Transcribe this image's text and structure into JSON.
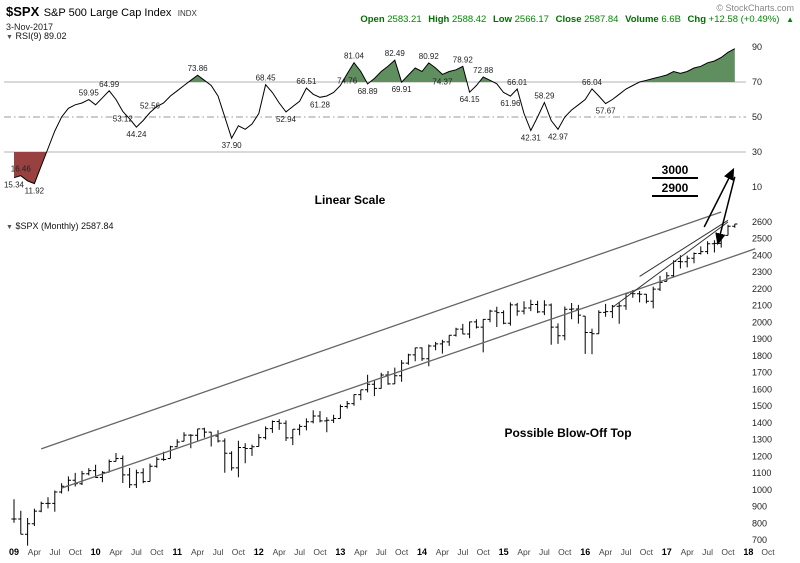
{
  "header": {
    "symbol": "$SPX",
    "name": "S&P 500 Large Cap Index",
    "exchange": "INDX",
    "date": "3-Nov-2017",
    "copyright": "© StockCharts.com",
    "quote": {
      "open_label": "Open",
      "open": "2583.21",
      "high_label": "High",
      "high": "2588.42",
      "low_label": "Low",
      "low": "2566.17",
      "close_label": "Close",
      "close": "2587.84",
      "volume_label": "Volume",
      "volume": "6.6B",
      "chg_label": "Chg",
      "chg": "+12.58 (+0.49%)"
    }
  },
  "icons": {
    "collapse": "▼",
    "up_arrow": "▲"
  },
  "rsi_panel": {
    "name": "RSI(9)",
    "value": "89.02",
    "axis": [
      90,
      70,
      50,
      30,
      10
    ]
  },
  "main_panel": {
    "name": "$SPX (Monthly)",
    "value": "2587.84",
    "axis": [
      2600,
      2500,
      2400,
      2300,
      2200,
      2100,
      2000,
      1900,
      1800,
      1700,
      1600,
      1500,
      1400,
      1300,
      1200,
      1100,
      1000,
      900,
      800,
      700
    ]
  },
  "annotations": {
    "linear_scale": "Linear Scale",
    "blow_off": "Possible Blow-Off Top",
    "target_upper": "3000",
    "target_lower": "2900"
  },
  "x_axis": {
    "years": [
      "09",
      "10",
      "11",
      "12",
      "13",
      "14",
      "15",
      "16",
      "17",
      "18"
    ],
    "quarter_months": [
      "Apr",
      "Jul",
      "Oct"
    ],
    "extra_month": "Oct"
  },
  "colors": {
    "quote_green": "#008000",
    "rsi_fill_up": "#5f8f5f",
    "rsi_fill_down": "#994040",
    "line": "#000000",
    "channel": "#666666",
    "guide": "#b3b3b3",
    "mid_guide": "#999999",
    "copyright_gray": "#888888"
  },
  "chart_data": {
    "type": "mixed",
    "panels": [
      {
        "type": "line",
        "name": "RSI(9)",
        "current": 89.02,
        "ylim": [
          0,
          100
        ],
        "overbought": 70,
        "oversold": 30,
        "midline": 50,
        "values": [
          15.34,
          16.46,
          13.5,
          11.92,
          22,
          32,
          42,
          50,
          55,
          57,
          58,
          59.95,
          57,
          61,
          64.99,
          60,
          53.12,
          49,
          44.24,
          48,
          52.56,
          56,
          58,
          62,
          65,
          68,
          71,
          73.86,
          71,
          68,
          62,
          50,
          37.9,
          45,
          43,
          46,
          52,
          68.45,
          64,
          58,
          52.94,
          56,
          59,
          66.51,
          63,
          61.28,
          62,
          64,
          68,
          74.76,
          81.04,
          76,
          68.89,
          72,
          76,
          79,
          82.49,
          69.91,
          74,
          78,
          76,
          80.92,
          78,
          74.37,
          76,
          77,
          78.92,
          64.15,
          68,
          72.88,
          71,
          69,
          64,
          61.96,
          66.01,
          52,
          42.31,
          50,
          58.29,
          48,
          42.97,
          50,
          54,
          57,
          60,
          66.04,
          62,
          57.67,
          60,
          63,
          66,
          68,
          70,
          71,
          72,
          73,
          74,
          76,
          75,
          76,
          78,
          79,
          81,
          82,
          84,
          87,
          89.02
        ],
        "callouts": [
          [
            0,
            15.34,
            "b"
          ],
          [
            1,
            16.46,
            "a"
          ],
          [
            3,
            11.92,
            "b"
          ],
          [
            11,
            59.95,
            "a"
          ],
          [
            14,
            64.99,
            "a"
          ],
          [
            16,
            53.12,
            "b"
          ],
          [
            18,
            44.24,
            "b"
          ],
          [
            20,
            52.56,
            "a"
          ],
          [
            27,
            73.86,
            "a"
          ],
          [
            32,
            37.9,
            "b"
          ],
          [
            37,
            68.45,
            "a"
          ],
          [
            40,
            52.94,
            "b"
          ],
          [
            43,
            66.51,
            "a"
          ],
          [
            45,
            61.28,
            "b"
          ],
          [
            49,
            74.76,
            "b"
          ],
          [
            50,
            81.04,
            "a"
          ],
          [
            52,
            68.89,
            "b"
          ],
          [
            56,
            82.49,
            "a"
          ],
          [
            57,
            69.91,
            "b"
          ],
          [
            61,
            80.92,
            "a"
          ],
          [
            63,
            74.37,
            "b"
          ],
          [
            66,
            78.92,
            "a"
          ],
          [
            67,
            64.15,
            "b"
          ],
          [
            69,
            72.88,
            "a"
          ],
          [
            73,
            61.96,
            "b"
          ],
          [
            74,
            66.01,
            "a"
          ],
          [
            76,
            42.31,
            "b"
          ],
          [
            78,
            58.29,
            "a"
          ],
          [
            80,
            42.97,
            "b"
          ],
          [
            85,
            66.04,
            "a"
          ],
          [
            87,
            57.67,
            "b"
          ]
        ]
      },
      {
        "type": "ohlc",
        "name": "$SPX Monthly",
        "current": 2587.84,
        "first_month": "2009-01",
        "last_month": "2017-11",
        "ylim": [
          700,
          2600
        ],
        "bars": [
          [
            944,
            804,
            826
          ],
          [
            875,
            735,
            735
          ],
          [
            832,
            667,
            798
          ],
          [
            888,
            784,
            873
          ],
          [
            930,
            866,
            919
          ],
          [
            956,
            889,
            919
          ],
          [
            996,
            869,
            987
          ],
          [
            1039,
            978,
            1021
          ],
          [
            1080,
            992,
            1057
          ],
          [
            1101,
            1020,
            1036
          ],
          [
            1113,
            1029,
            1096
          ],
          [
            1130,
            1086,
            1115
          ],
          [
            1150,
            1072,
            1074
          ],
          [
            1112,
            1045,
            1104
          ],
          [
            1181,
            1105,
            1169
          ],
          [
            1220,
            1170,
            1187
          ],
          [
            1205,
            1041,
            1089
          ],
          [
            1131,
            1011,
            1031
          ],
          [
            1121,
            1011,
            1102
          ],
          [
            1129,
            1040,
            1049
          ],
          [
            1157,
            1050,
            1141
          ],
          [
            1196,
            1132,
            1183
          ],
          [
            1227,
            1173,
            1181
          ],
          [
            1263,
            1187,
            1258
          ],
          [
            1302,
            1258,
            1286
          ],
          [
            1344,
            1290,
            1327
          ],
          [
            1332,
            1249,
            1326
          ],
          [
            1364,
            1295,
            1364
          ],
          [
            1371,
            1312,
            1345
          ],
          [
            1346,
            1259,
            1321
          ],
          [
            1356,
            1283,
            1292
          ],
          [
            1307,
            1102,
            1219
          ],
          [
            1230,
            1115,
            1131
          ],
          [
            1293,
            1075,
            1253
          ],
          [
            1278,
            1159,
            1247
          ],
          [
            1270,
            1203,
            1258
          ],
          [
            1333,
            1259,
            1312
          ],
          [
            1379,
            1301,
            1366
          ],
          [
            1414,
            1340,
            1408
          ],
          [
            1422,
            1358,
            1398
          ],
          [
            1415,
            1292,
            1310
          ],
          [
            1363,
            1267,
            1362
          ],
          [
            1392,
            1326,
            1379
          ],
          [
            1427,
            1355,
            1407
          ],
          [
            1475,
            1397,
            1441
          ],
          [
            1471,
            1403,
            1412
          ],
          [
            1434,
            1344,
            1416
          ],
          [
            1449,
            1399,
            1426
          ],
          [
            1510,
            1426,
            1498
          ],
          [
            1531,
            1486,
            1515
          ],
          [
            1570,
            1502,
            1569
          ],
          [
            1597,
            1536,
            1598
          ],
          [
            1687,
            1582,
            1631
          ],
          [
            1655,
            1560,
            1606
          ],
          [
            1699,
            1605,
            1686
          ],
          [
            1710,
            1628,
            1633
          ],
          [
            1730,
            1633,
            1682
          ],
          [
            1775,
            1646,
            1757
          ],
          [
            1813,
            1747,
            1806
          ],
          [
            1849,
            1768,
            1848
          ],
          [
            1851,
            1770,
            1783
          ],
          [
            1868,
            1738,
            1859
          ],
          [
            1884,
            1834,
            1872
          ],
          [
            1897,
            1814,
            1884
          ],
          [
            1924,
            1860,
            1924
          ],
          [
            1968,
            1916,
            1960
          ],
          [
            1991,
            1930,
            1931
          ],
          [
            2005,
            1905,
            2003
          ],
          [
            2019,
            1964,
            1972
          ],
          [
            2019,
            1821,
            2018
          ],
          [
            2076,
            2001,
            2068
          ],
          [
            2094,
            1973,
            2059
          ],
          [
            2072,
            1989,
            1995
          ],
          [
            2120,
            1981,
            2105
          ],
          [
            2117,
            2040,
            2068
          ],
          [
            2126,
            2048,
            2086
          ],
          [
            2135,
            2068,
            2107
          ],
          [
            2130,
            2056,
            2063
          ],
          [
            2133,
            2044,
            2104
          ],
          [
            2113,
            1867,
            1972
          ],
          [
            1994,
            1872,
            1920
          ],
          [
            2095,
            1894,
            2079
          ],
          [
            2116,
            2019,
            2080
          ],
          [
            2105,
            1993,
            2044
          ],
          [
            2038,
            1812,
            1940
          ],
          [
            1963,
            1810,
            1932
          ],
          [
            2073,
            1932,
            2060
          ],
          [
            2111,
            2034,
            2065
          ],
          [
            2104,
            2026,
            2097
          ],
          [
            2121,
            1992,
            2099
          ],
          [
            2177,
            2075,
            2174
          ],
          [
            2194,
            2148,
            2171
          ],
          [
            2188,
            2120,
            2168
          ],
          [
            2170,
            2114,
            2126
          ],
          [
            2214,
            2084,
            2199
          ],
          [
            2278,
            2188,
            2239
          ],
          [
            2301,
            2245,
            2279
          ],
          [
            2372,
            2268,
            2364
          ],
          [
            2401,
            2322,
            2363
          ],
          [
            2399,
            2329,
            2384
          ],
          [
            2418,
            2353,
            2412
          ],
          [
            2454,
            2406,
            2423
          ],
          [
            2485,
            2408,
            2470
          ],
          [
            2491,
            2418,
            2472
          ],
          [
            2519,
            2447,
            2519
          ],
          [
            2583,
            2520,
            2575
          ],
          [
            2588,
            2566,
            2587.84
          ]
        ]
      }
    ],
    "trendlines": [
      {
        "name": "channel-lower",
        "i1": 7,
        "p1": 1010,
        "i2": 109,
        "p2": 2440,
        "color": "#666666",
        "width": 1.3
      },
      {
        "name": "channel-upper",
        "i1": 4,
        "p1": 1245,
        "i2": 104,
        "p2": 2660,
        "color": "#666666",
        "width": 1.3
      },
      {
        "name": "wedge-lower",
        "i1": 88,
        "p1": 2090,
        "i2": 105,
        "p2": 2600,
        "color": "#333333",
        "width": 1
      },
      {
        "name": "wedge-upper",
        "i1": 92,
        "p1": 2275,
        "i2": 105,
        "p2": 2610,
        "color": "#333333",
        "width": 1
      }
    ],
    "arrows": [
      {
        "name": "spike-up",
        "i1": 101.5,
        "p1": 2570,
        "i2": 105.8,
        "p2": 2915
      },
      {
        "name": "drop-down",
        "i1": 106,
        "p1": 2870,
        "i2": 103.5,
        "p2": 2470
      }
    ],
    "price_targets": [
      3000,
      2900
    ]
  }
}
